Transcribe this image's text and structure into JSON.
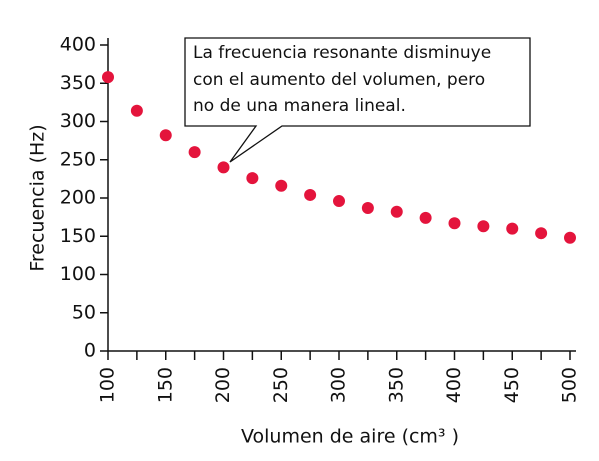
{
  "chart_data": {
    "type": "scatter",
    "x_label": "Volumen de aire (cm³ )",
    "y_label": "Frecuencia (Hz)",
    "annotation": [
      "La frecuencia resonante disminuye",
      "con el aumento del volumen, pero",
      "no de una manera lineal."
    ],
    "x": [
      100,
      125,
      150,
      175,
      200,
      225,
      250,
      275,
      300,
      325,
      350,
      375,
      400,
      425,
      450,
      475,
      500
    ],
    "series": [
      {
        "color": "#e4143c",
        "values": [
          358,
          314,
          282,
          260,
          240,
          226,
          216,
          204,
          196,
          187,
          182,
          174,
          167,
          163,
          160,
          154,
          148
        ]
      }
    ],
    "xlim": [
      100,
      500
    ],
    "ylim": [
      0,
      400
    ],
    "xticks": [
      100,
      150,
      200,
      250,
      300,
      350,
      400,
      450,
      500
    ],
    "xminorticks": [
      125,
      175,
      225,
      275,
      325,
      375,
      425,
      475
    ],
    "yticks": [
      0,
      50,
      100,
      150,
      200,
      250,
      300,
      350,
      400
    ]
  }
}
